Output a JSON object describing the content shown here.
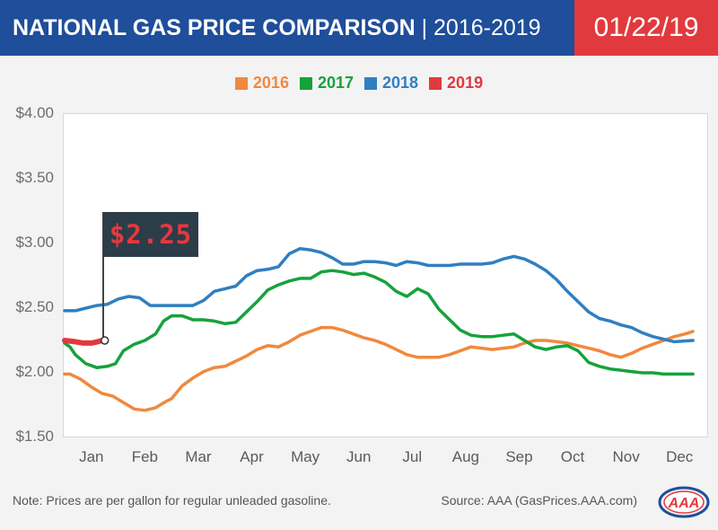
{
  "header": {
    "title_bold": "NATIONAL GAS PRICE COMPARISON",
    "title_light": " | 2016-2019",
    "date": "01/22/19",
    "bg_color": "#1f4e9a",
    "date_bg_color": "#e13a3e"
  },
  "flag_label": "$2.25",
  "note": "Note: Prices are per gallon for regular unleaded gasoline.",
  "source": "Source: AAA (GasPrices.AAA.com)",
  "logo": {
    "text": "AAA",
    "icon": "aaa-oval-logo"
  },
  "chart_data": {
    "type": "line",
    "title": "",
    "xlabel": "",
    "ylabel": "",
    "x_months": [
      "Jan",
      "Feb",
      "Mar",
      "Apr",
      "May",
      "Jun",
      "Jul",
      "Aug",
      "Sep",
      "Oct",
      "Nov",
      "Dec"
    ],
    "y_ticks": [
      "$4.00",
      "$3.50",
      "$3.00",
      "$2.50",
      "$2.00",
      "$1.50"
    ],
    "ylim": [
      1.5,
      4.0
    ],
    "grid": false,
    "legend_position": "top-center",
    "series": [
      {
        "name": "2016",
        "color": "#f0893e",
        "points": [
          [
            0,
            1.99
          ],
          [
            0.1,
            1.99
          ],
          [
            0.3,
            1.95
          ],
          [
            0.5,
            1.89
          ],
          [
            0.7,
            1.84
          ],
          [
            0.9,
            1.82
          ],
          [
            1.1,
            1.77
          ],
          [
            1.3,
            1.72
          ],
          [
            1.5,
            1.71
          ],
          [
            1.7,
            1.73
          ],
          [
            1.9,
            1.78
          ],
          [
            2.0,
            1.8
          ],
          [
            2.2,
            1.9
          ],
          [
            2.4,
            1.96
          ],
          [
            2.6,
            2.01
          ],
          [
            2.8,
            2.04
          ],
          [
            3.0,
            2.05
          ],
          [
            3.2,
            2.09
          ],
          [
            3.4,
            2.13
          ],
          [
            3.6,
            2.18
          ],
          [
            3.8,
            2.21
          ],
          [
            4.0,
            2.2
          ],
          [
            4.2,
            2.24
          ],
          [
            4.4,
            2.29
          ],
          [
            4.6,
            2.32
          ],
          [
            4.8,
            2.35
          ],
          [
            5.0,
            2.35
          ],
          [
            5.2,
            2.33
          ],
          [
            5.4,
            2.3
          ],
          [
            5.6,
            2.27
          ],
          [
            5.8,
            2.25
          ],
          [
            6.0,
            2.22
          ],
          [
            6.2,
            2.18
          ],
          [
            6.4,
            2.14
          ],
          [
            6.6,
            2.12
          ],
          [
            6.8,
            2.12
          ],
          [
            7.0,
            2.12
          ],
          [
            7.2,
            2.14
          ],
          [
            7.4,
            2.17
          ],
          [
            7.6,
            2.2
          ],
          [
            7.8,
            2.19
          ],
          [
            8.0,
            2.18
          ],
          [
            8.2,
            2.19
          ],
          [
            8.4,
            2.2
          ],
          [
            8.6,
            2.23
          ],
          [
            8.8,
            2.25
          ],
          [
            9.0,
            2.25
          ],
          [
            9.2,
            2.24
          ],
          [
            9.4,
            2.23
          ],
          [
            9.6,
            2.21
          ],
          [
            9.8,
            2.19
          ],
          [
            10.0,
            2.17
          ],
          [
            10.2,
            2.14
          ],
          [
            10.4,
            2.12
          ],
          [
            10.6,
            2.15
          ],
          [
            10.8,
            2.19
          ],
          [
            11.0,
            2.22
          ],
          [
            11.2,
            2.25
          ],
          [
            11.4,
            2.28
          ],
          [
            11.6,
            2.3
          ],
          [
            11.75,
            2.32
          ]
        ]
      },
      {
        "name": "2017",
        "color": "#16a23b",
        "points": [
          [
            0,
            2.23
          ],
          [
            0.1,
            2.2
          ],
          [
            0.2,
            2.14
          ],
          [
            0.4,
            2.07
          ],
          [
            0.6,
            2.04
          ],
          [
            0.8,
            2.05
          ],
          [
            0.95,
            2.07
          ],
          [
            1.1,
            2.17
          ],
          [
            1.3,
            2.22
          ],
          [
            1.5,
            2.25
          ],
          [
            1.7,
            2.3
          ],
          [
            1.85,
            2.4
          ],
          [
            2.0,
            2.44
          ],
          [
            2.2,
            2.44
          ],
          [
            2.4,
            2.41
          ],
          [
            2.6,
            2.41
          ],
          [
            2.8,
            2.4
          ],
          [
            3.0,
            2.38
          ],
          [
            3.2,
            2.39
          ],
          [
            3.4,
            2.47
          ],
          [
            3.6,
            2.55
          ],
          [
            3.8,
            2.64
          ],
          [
            4.0,
            2.68
          ],
          [
            4.2,
            2.71
          ],
          [
            4.4,
            2.73
          ],
          [
            4.6,
            2.73
          ],
          [
            4.8,
            2.78
          ],
          [
            5.0,
            2.79
          ],
          [
            5.2,
            2.78
          ],
          [
            5.4,
            2.76
          ],
          [
            5.6,
            2.77
          ],
          [
            5.8,
            2.74
          ],
          [
            6.0,
            2.7
          ],
          [
            6.2,
            2.63
          ],
          [
            6.4,
            2.59
          ],
          [
            6.6,
            2.65
          ],
          [
            6.8,
            2.61
          ],
          [
            7.0,
            2.49
          ],
          [
            7.2,
            2.41
          ],
          [
            7.4,
            2.33
          ],
          [
            7.6,
            2.29
          ],
          [
            7.8,
            2.28
          ],
          [
            8.0,
            2.28
          ],
          [
            8.2,
            2.29
          ],
          [
            8.4,
            2.3
          ],
          [
            8.6,
            2.25
          ],
          [
            8.8,
            2.2
          ],
          [
            9.0,
            2.18
          ],
          [
            9.2,
            2.2
          ],
          [
            9.4,
            2.21
          ],
          [
            9.6,
            2.17
          ],
          [
            9.8,
            2.08
          ],
          [
            10.0,
            2.05
          ],
          [
            10.2,
            2.03
          ],
          [
            10.4,
            2.02
          ],
          [
            10.6,
            2.01
          ],
          [
            10.8,
            2.0
          ],
          [
            11.0,
            2.0
          ],
          [
            11.2,
            1.99
          ],
          [
            11.75,
            1.99
          ]
        ]
      },
      {
        "name": "2018",
        "color": "#2f7fc1",
        "points": [
          [
            0,
            2.48
          ],
          [
            0.2,
            2.48
          ],
          [
            0.4,
            2.5
          ],
          [
            0.6,
            2.52
          ],
          [
            0.8,
            2.53
          ],
          [
            1.0,
            2.57
          ],
          [
            1.2,
            2.59
          ],
          [
            1.4,
            2.58
          ],
          [
            1.6,
            2.52
          ],
          [
            1.8,
            2.52
          ],
          [
            2.0,
            2.52
          ],
          [
            2.2,
            2.52
          ],
          [
            2.4,
            2.52
          ],
          [
            2.6,
            2.56
          ],
          [
            2.8,
            2.63
          ],
          [
            3.0,
            2.65
          ],
          [
            3.2,
            2.67
          ],
          [
            3.4,
            2.75
          ],
          [
            3.6,
            2.79
          ],
          [
            3.8,
            2.8
          ],
          [
            4.0,
            2.82
          ],
          [
            4.2,
            2.92
          ],
          [
            4.4,
            2.96
          ],
          [
            4.6,
            2.95
          ],
          [
            4.8,
            2.93
          ],
          [
            5.0,
            2.89
          ],
          [
            5.2,
            2.84
          ],
          [
            5.4,
            2.84
          ],
          [
            5.6,
            2.86
          ],
          [
            5.8,
            2.86
          ],
          [
            6.0,
            2.85
          ],
          [
            6.2,
            2.83
          ],
          [
            6.4,
            2.86
          ],
          [
            6.6,
            2.85
          ],
          [
            6.8,
            2.83
          ],
          [
            7.0,
            2.83
          ],
          [
            7.2,
            2.83
          ],
          [
            7.4,
            2.84
          ],
          [
            7.6,
            2.84
          ],
          [
            7.8,
            2.84
          ],
          [
            8.0,
            2.85
          ],
          [
            8.2,
            2.88
          ],
          [
            8.4,
            2.9
          ],
          [
            8.6,
            2.88
          ],
          [
            8.8,
            2.84
          ],
          [
            9.0,
            2.79
          ],
          [
            9.2,
            2.72
          ],
          [
            9.4,
            2.63
          ],
          [
            9.6,
            2.55
          ],
          [
            9.8,
            2.47
          ],
          [
            10.0,
            2.42
          ],
          [
            10.2,
            2.4
          ],
          [
            10.4,
            2.37
          ],
          [
            10.6,
            2.35
          ],
          [
            10.8,
            2.31
          ],
          [
            11.0,
            2.28
          ],
          [
            11.2,
            2.26
          ],
          [
            11.4,
            2.24
          ],
          [
            11.75,
            2.25
          ]
        ]
      },
      {
        "name": "2019",
        "color": "#e13a3e",
        "points": [
          [
            0,
            2.25
          ],
          [
            0.2,
            2.24
          ],
          [
            0.35,
            2.23
          ],
          [
            0.5,
            2.23
          ],
          [
            0.62,
            2.24
          ],
          [
            0.7,
            2.25
          ]
        ]
      }
    ]
  }
}
